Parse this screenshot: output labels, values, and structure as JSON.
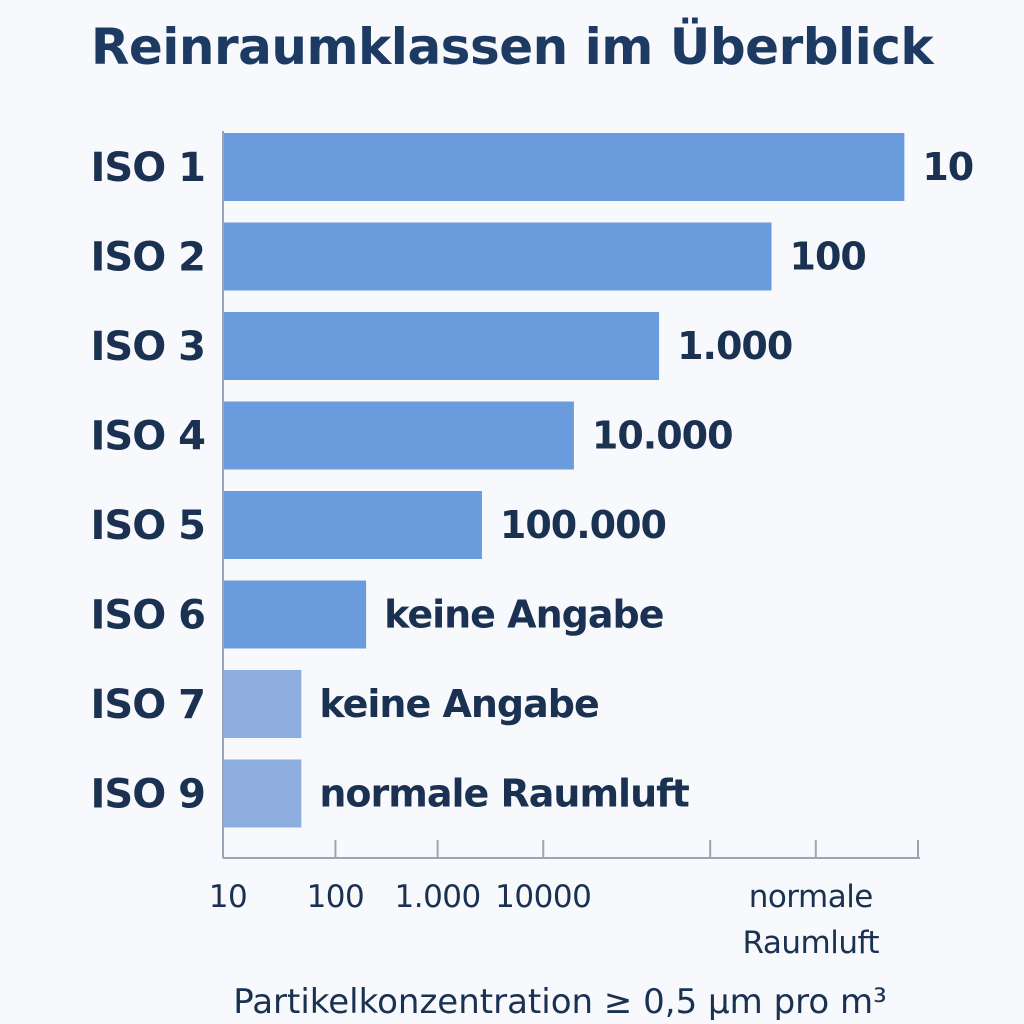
{
  "chart_data": {
    "type": "bar",
    "orientation": "horizontal",
    "title": "Reinraumklassen im Überblick",
    "xlabel": "Partikelkonzentration ≥ 0,5 µm pro m³",
    "ylabel": "",
    "categories": [
      "ISO 1",
      "ISO 2",
      "ISO 3",
      "ISO 4",
      "ISO 5",
      "ISO 6",
      "ISO 7",
      "ISO 9"
    ],
    "values": [
      100,
      80.5,
      64,
      51.5,
      38,
      21,
      11.5,
      11.5
    ],
    "value_labels": [
      "10",
      "100",
      "1.000",
      "10.000",
      "100.000",
      "keine Angabe",
      "keine Angabe",
      "normale Raumluft"
    ],
    "xlim": [
      0,
      102
    ],
    "x_ticks": [
      {
        "pos": 0,
        "label": "10"
      },
      {
        "pos": 16.5,
        "label": "100"
      },
      {
        "pos": 31.5,
        "label": "1.000"
      },
      {
        "pos": 47,
        "label": "10000"
      },
      {
        "pos": 71.5,
        "label": ""
      },
      {
        "pos": 87,
        "label": "normale Raumluft"
      },
      {
        "pos": 102,
        "label": ""
      }
    ],
    "bar_colors": [
      "#6a9bdc",
      "#6a9bdc",
      "#6a9bdc",
      "#6a9bdc",
      "#6a9bdc",
      "#6a9bdc",
      "#8eaedf",
      "#8eaedf"
    ],
    "grid": false,
    "legend": "none"
  }
}
